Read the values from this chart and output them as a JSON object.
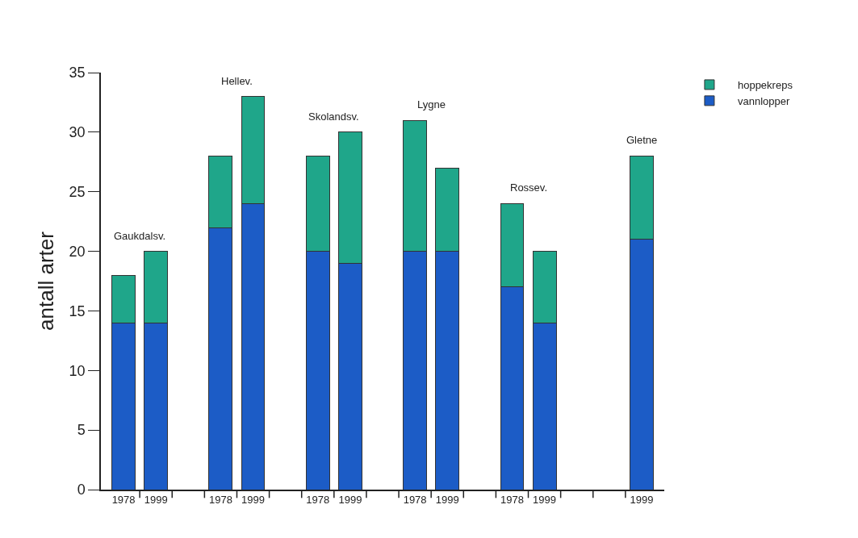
{
  "chart_data": {
    "type": "bar",
    "stacked": true,
    "ylabel": "antall arter",
    "categories": [
      "1978",
      "1999",
      null,
      "1978",
      "1999",
      null,
      "1978",
      "1999",
      null,
      "1978",
      "1999",
      null,
      "1978",
      "1999",
      null,
      null,
      "1999"
    ],
    "series": [
      {
        "name": "vannlopper",
        "color": "#1c5cc6",
        "values": [
          14,
          14,
          null,
          22,
          24,
          null,
          20,
          19,
          null,
          20,
          20,
          null,
          17,
          14,
          null,
          null,
          21
        ]
      },
      {
        "name": "hoppekreps",
        "color": "#1fa68a",
        "values": [
          4,
          6,
          null,
          6,
          9,
          null,
          8,
          11,
          null,
          11,
          7,
          null,
          7,
          6,
          null,
          null,
          7
        ]
      }
    ],
    "annotations": [
      "Gaukdalsv.",
      "Hellev.",
      "Skolandsv.",
      "Lygne",
      "Rossev.",
      "Gletne"
    ],
    "ylim": [
      0,
      35
    ],
    "yticks": [
      0,
      5,
      10,
      15,
      20,
      25,
      30,
      35
    ],
    "grid": false,
    "legend": "top right"
  }
}
